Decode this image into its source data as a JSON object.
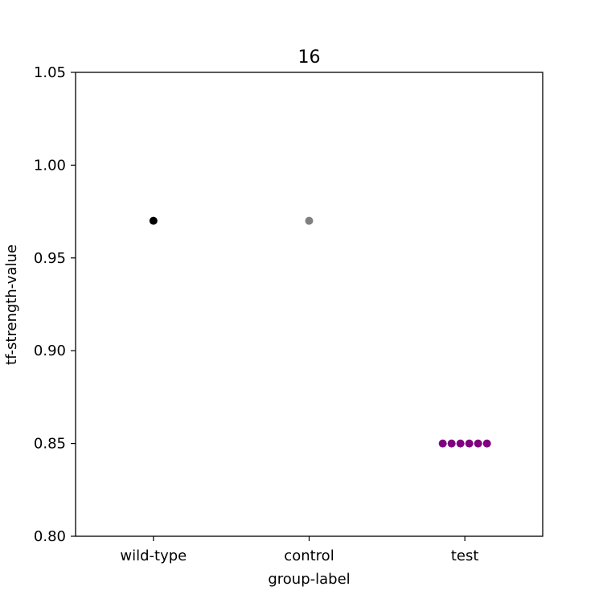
{
  "chart_data": {
    "type": "scatter",
    "title": "16",
    "xlabel": "group-label",
    "ylabel": "tf-strength-value",
    "categories": [
      "wild-type",
      "control",
      "test"
    ],
    "ylim": [
      0.8,
      1.05
    ],
    "yticks": [
      "0.80",
      "0.85",
      "0.90",
      "0.95",
      "1.00",
      "1.05"
    ],
    "grid": false,
    "legend": "none",
    "series": [
      {
        "category": "wild-type",
        "color": "#000000",
        "values": [
          0.97
        ]
      },
      {
        "category": "control",
        "color": "#808080",
        "values": [
          0.97
        ]
      },
      {
        "category": "test",
        "color": "#800080",
        "values": [
          0.85,
          0.85,
          0.85,
          0.85,
          0.85,
          0.85
        ]
      }
    ]
  }
}
